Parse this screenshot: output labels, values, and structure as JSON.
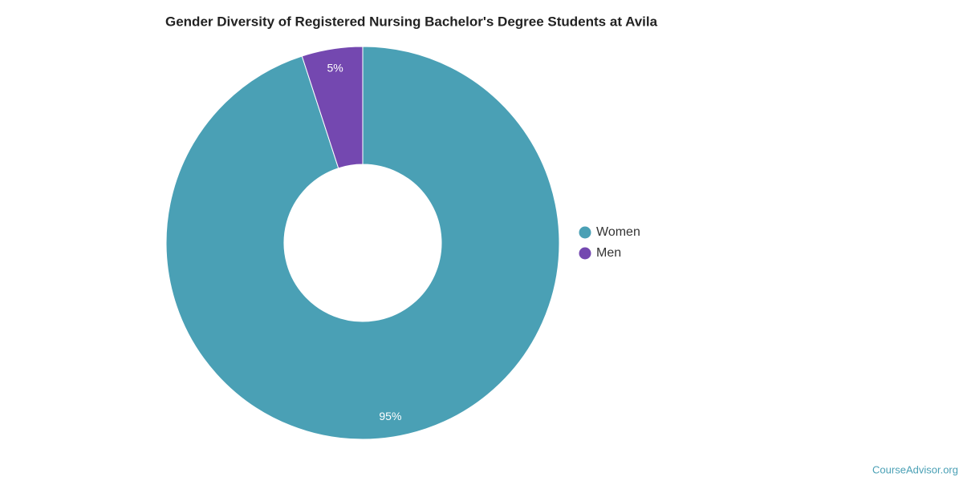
{
  "chart_data": {
    "type": "pie",
    "title": "Gender Diversity of Registered Nursing Bachelor's Degree Students at Avila",
    "categories": [
      "Women",
      "Men"
    ],
    "values": [
      95,
      5
    ],
    "value_labels": [
      "95%",
      "5%"
    ],
    "colors": [
      "#4aa0b5",
      "#7448b0"
    ],
    "donut": true,
    "legend": "right",
    "source": "CourseAdvisor.org"
  }
}
